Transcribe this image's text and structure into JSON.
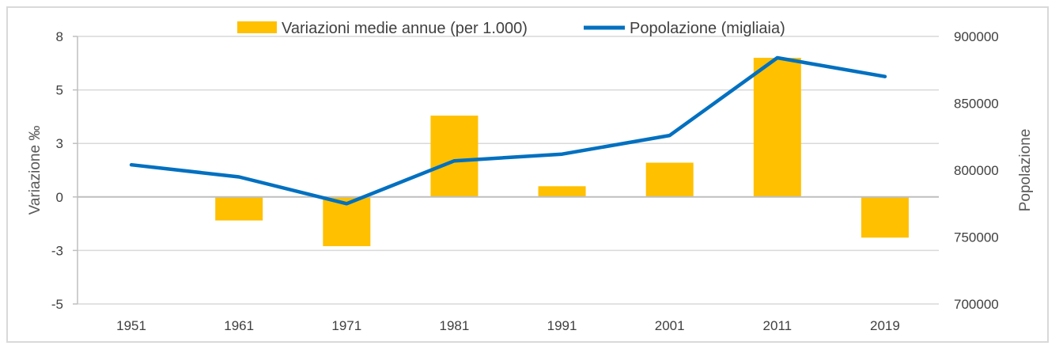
{
  "chart_data": {
    "type": "bar+line",
    "categories": [
      "1951",
      "1961",
      "1971",
      "1981",
      "1991",
      "2001",
      "2011",
      "2019"
    ],
    "series": [
      {
        "name": "Variazioni medie annue (per 1.000)",
        "type": "bar",
        "axis": "left",
        "color": "#FFC000",
        "values": [
          0,
          -1.1,
          -2.3,
          3.8,
          0.5,
          1.6,
          6.5,
          -1.9
        ]
      },
      {
        "name": "Popolazione (migliaia)",
        "type": "line",
        "axis": "right",
        "color": "#0070C0",
        "values": [
          804000,
          795000,
          775000,
          807000,
          812000,
          826000,
          884000,
          870000
        ]
      }
    ],
    "ylabel_left": "Variazione ‰",
    "ylabel_right": "Popolazione",
    "left_axis": {
      "min": -5,
      "max": 7.5,
      "ticks": [
        -5,
        -2.5,
        0,
        2.5,
        5,
        7.5
      ],
      "tick_labels": [
        "-5",
        "-3",
        "0",
        "3",
        "5",
        "8"
      ]
    },
    "right_axis": {
      "min": 700000,
      "max": 900000,
      "ticks": [
        700000,
        750000,
        800000,
        850000,
        900000
      ],
      "tick_labels": [
        "700000",
        "750000",
        "800000",
        "850000",
        "900000"
      ]
    },
    "grid": true,
    "legend_position": "top"
  }
}
